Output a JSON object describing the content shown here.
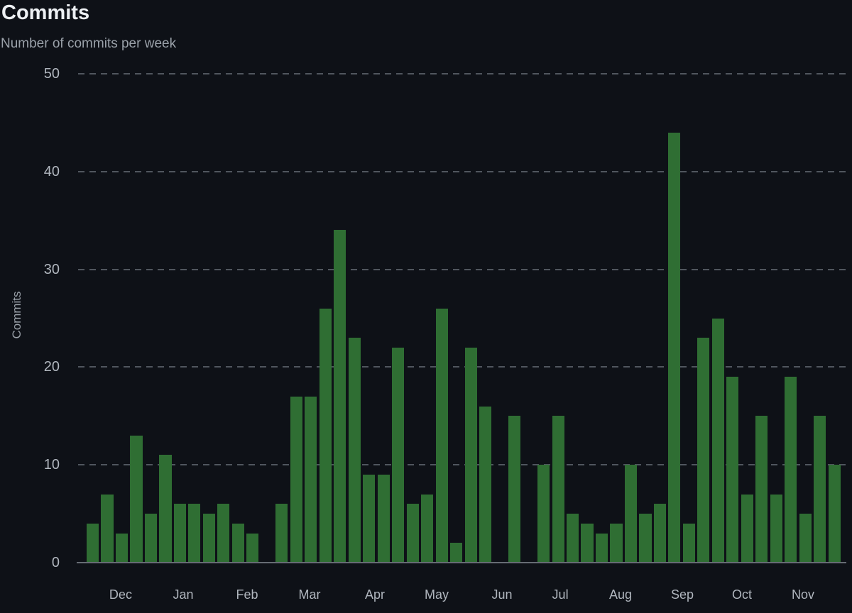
{
  "page": {
    "title": "Commits",
    "subtitle": "Number of commits per week"
  },
  "chart_data": {
    "type": "bar",
    "title": "Commits",
    "subtitle": "Number of commits per week",
    "xlabel": "",
    "ylabel": "Commits",
    "x_unit": "week",
    "ylim": [
      0,
      50
    ],
    "yticks": [
      0,
      10,
      20,
      30,
      40,
      50
    ],
    "grid": "horizontal-dashed",
    "legend": "none",
    "values": [
      4,
      7,
      3,
      13,
      5,
      11,
      6,
      6,
      5,
      6,
      4,
      3,
      0,
      6,
      17,
      17,
      26,
      34,
      23,
      9,
      9,
      22,
      6,
      7,
      26,
      2,
      22,
      16,
      0,
      15,
      0,
      10,
      15,
      5,
      4,
      3,
      4,
      10,
      5,
      6,
      44,
      4,
      23,
      25,
      19,
      7,
      15,
      7,
      19,
      5,
      15,
      10
    ],
    "month_ticks": [
      {
        "label": "Dec",
        "x": 0.0554
      },
      {
        "label": "Jan",
        "x": 0.1368
      },
      {
        "label": "Feb",
        "x": 0.22
      },
      {
        "label": "Mar",
        "x": 0.3013
      },
      {
        "label": "Apr",
        "x": 0.3863
      },
      {
        "label": "May",
        "x": 0.4667
      },
      {
        "label": "Jun",
        "x": 0.5518
      },
      {
        "label": "Jul",
        "x": 0.6276
      },
      {
        "label": "Aug",
        "x": 0.7061
      },
      {
        "label": "Sep",
        "x": 0.7865
      },
      {
        "label": "Oct",
        "x": 0.8641
      },
      {
        "label": "Nov",
        "x": 0.9436
      }
    ],
    "colors": {
      "background": "#0e1117",
      "bar": "#2f6e33",
      "title": "#edf0f3",
      "subtitle": "#9aa1a9",
      "tick": "#b0b6be",
      "axis_title": "#9aa1a9",
      "grid": "#50565e",
      "baseline": "#666c74"
    }
  }
}
